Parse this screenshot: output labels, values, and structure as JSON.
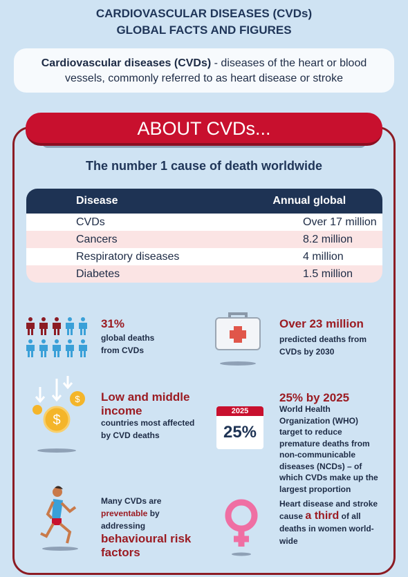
{
  "header": {
    "title_line1": "CARDIOVASCULAR DISEASES (CVDs)",
    "title_line2": "GLOBAL FACTS AND FIGURES"
  },
  "definition": {
    "term": "Cardiovascular diseases (CVDs)",
    "text": "- diseases of the heart or blood vessels, commonly referred to as heart disease or stroke"
  },
  "section": {
    "title": "ABOUT CVDs...",
    "subtitle": "The number 1 cause of death worldwide"
  },
  "table": {
    "columns": [
      "Disease",
      "Annual global deaths"
    ],
    "rows": [
      [
        "CVDs",
        "Over 17 million"
      ],
      [
        "Cancers",
        "8.2 million"
      ],
      [
        "Respiratory diseases",
        "4 million"
      ],
      [
        "Diabetes",
        "1.5 million"
      ]
    ]
  },
  "facts": {
    "global_deaths": {
      "headline": "31%",
      "text": "global deaths from CVDs"
    },
    "predicted": {
      "headline": "Over 23 million",
      "text": "predicted deaths from CVDs by 2030"
    },
    "income": {
      "headline": "Low and middle income",
      "text": "countries most affected by CVD deaths"
    },
    "target": {
      "calendar_year": "2025",
      "calendar_value": "25%",
      "headline": "25% by 2025",
      "text": "World Health Organization (WHO) target to reduce premature deaths from non-communicable diseases (NCDs) – of which CVDs make up the largest proportion"
    },
    "preventable": {
      "text_1": "Many CVDs are",
      "emphasis_1": "preventable",
      "text_2": "by addressing",
      "emphasis_2": "behavioural risk factors"
    },
    "women": {
      "text_1": "Heart disease and stroke cause",
      "emphasis": "a third",
      "text_2": "of all deaths in women world-wide"
    }
  }
}
